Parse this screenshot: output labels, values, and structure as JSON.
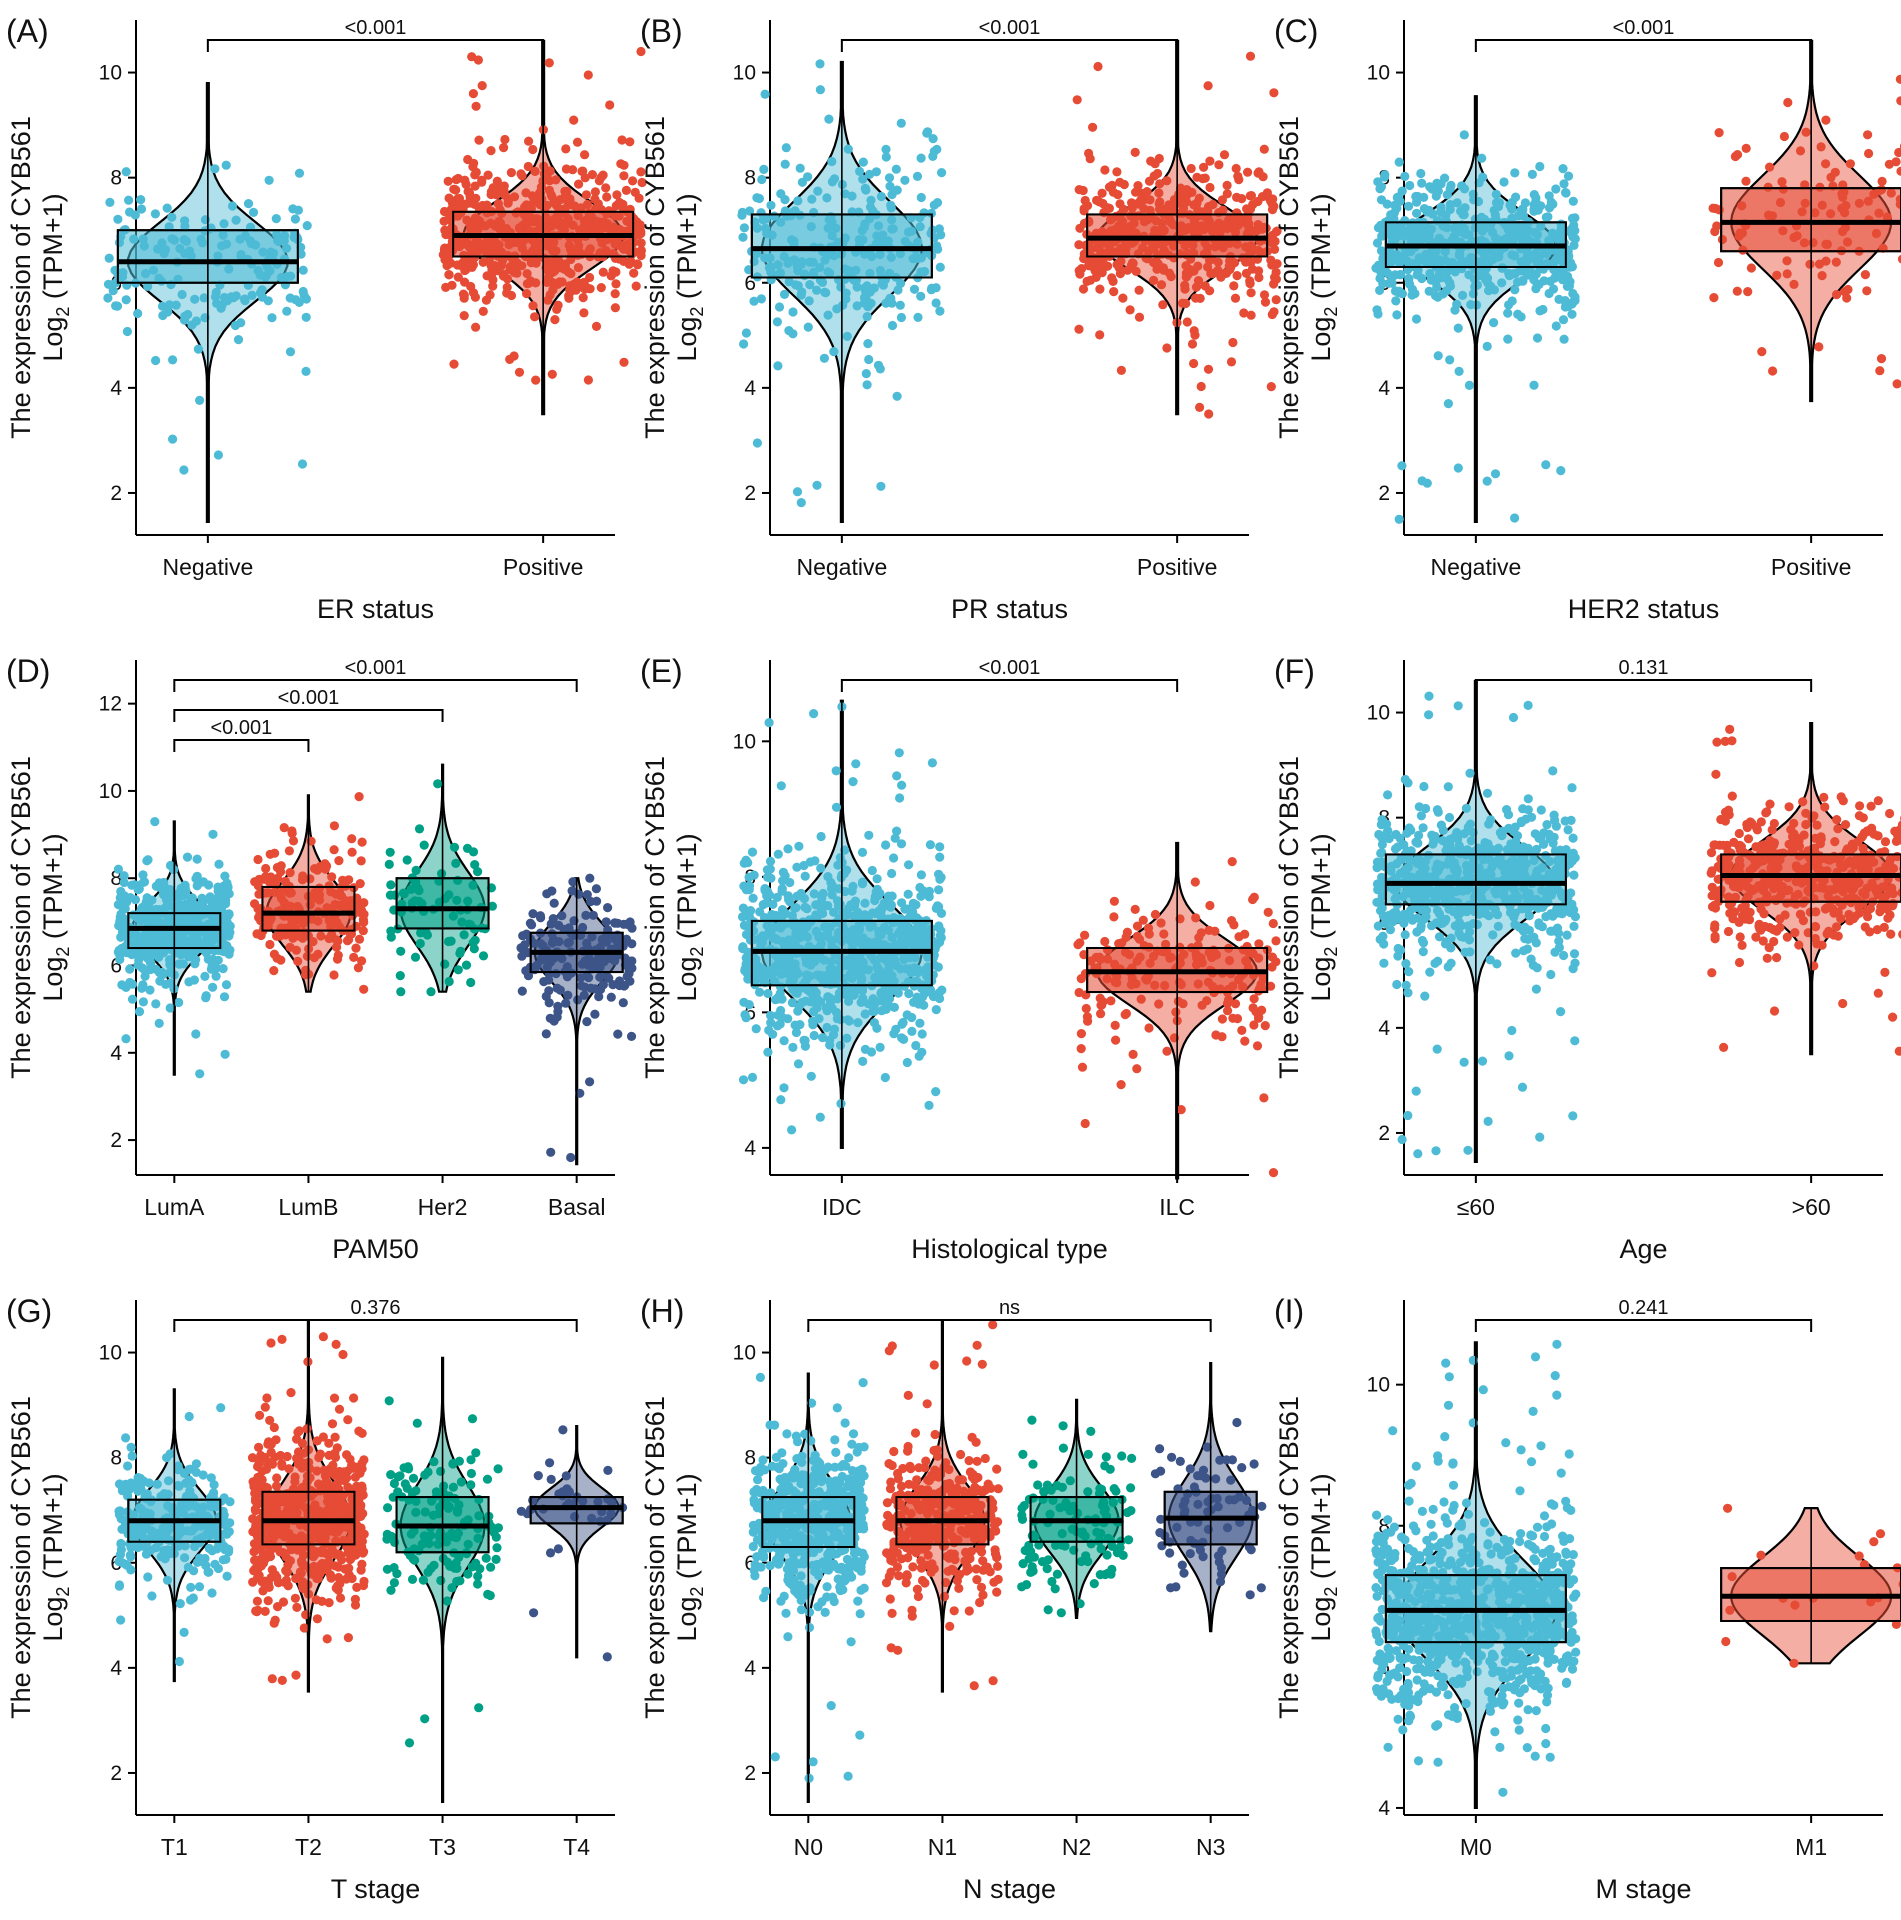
{
  "figure": {
    "ylabel_line1": "The expression of CYB561",
    "ylabel_line2_prefix": "Log",
    "ylabel_line2_sub": "2",
    "ylabel_line2_suffix": " (TPM+1)"
  },
  "colors": {
    "c1": "#4DBBD5",
    "c2": "#E64B35",
    "c3": "#00A087",
    "c4": "#3C5488"
  },
  "chart_data": [
    {
      "id": "A",
      "panel_label": "(A)",
      "type": "violin-box-jitter",
      "xlabel": "ER status",
      "ylim": [
        1.2,
        11
      ],
      "yticks": [
        2,
        4,
        6,
        8,
        10
      ],
      "groups": [
        {
          "name": "Negative",
          "color": "#4DBBD5",
          "q1": 6.0,
          "median": 6.4,
          "q3": 7.0,
          "min": 1.45,
          "max": 9.8,
          "n": 180,
          "seed": 11
        },
        {
          "name": "Positive",
          "color": "#E64B35",
          "q1": 6.5,
          "median": 6.9,
          "q3": 7.35,
          "min": 3.5,
          "max": 10.6,
          "n": 600,
          "seed": 12
        }
      ],
      "comparisons": [
        {
          "from": 0,
          "to": 1,
          "label": "<0.001"
        }
      ]
    },
    {
      "id": "B",
      "panel_label": "(B)",
      "type": "violin-box-jitter",
      "xlabel": "PR status",
      "ylim": [
        1.2,
        11
      ],
      "yticks": [
        2,
        4,
        6,
        8,
        10
      ],
      "groups": [
        {
          "name": "Negative",
          "color": "#4DBBD5",
          "q1": 6.1,
          "median": 6.65,
          "q3": 7.3,
          "min": 1.45,
          "max": 10.2,
          "n": 300,
          "seed": 21
        },
        {
          "name": "Positive",
          "color": "#E64B35",
          "q1": 6.5,
          "median": 6.85,
          "q3": 7.3,
          "min": 3.5,
          "max": 10.6,
          "n": 480,
          "seed": 22
        }
      ],
      "comparisons": [
        {
          "from": 0,
          "to": 1,
          "label": "<0.001"
        }
      ]
    },
    {
      "id": "C",
      "panel_label": "(C)",
      "type": "violin-box-jitter",
      "xlabel": "HER2 status",
      "ylim": [
        1.2,
        11
      ],
      "yticks": [
        2,
        4,
        6,
        8,
        10
      ],
      "groups": [
        {
          "name": "Negative",
          "color": "#4DBBD5",
          "q1": 6.3,
          "median": 6.7,
          "q3": 7.15,
          "min": 1.45,
          "max": 9.55,
          "n": 560,
          "seed": 31
        },
        {
          "name": "Positive",
          "color": "#E64B35",
          "q1": 6.6,
          "median": 7.15,
          "q3": 7.8,
          "min": 3.75,
          "max": 10.6,
          "n": 120,
          "seed": 32
        }
      ],
      "comparisons": [
        {
          "from": 0,
          "to": 1,
          "label": "<0.001"
        }
      ]
    },
    {
      "id": "D",
      "panel_label": "(D)",
      "type": "violin-box-jitter",
      "xlabel": "PAM50",
      "ylim": [
        1.2,
        13
      ],
      "yticks": [
        2,
        4,
        6,
        8,
        10,
        12
      ],
      "groups": [
        {
          "name": "LumA",
          "color": "#4DBBD5",
          "q1": 6.4,
          "median": 6.85,
          "q3": 7.2,
          "min": 3.5,
          "max": 9.3,
          "n": 500,
          "seed": 41
        },
        {
          "name": "LumB",
          "color": "#E64B35",
          "q1": 6.8,
          "median": 7.2,
          "q3": 7.8,
          "min": 5.4,
          "max": 9.9,
          "n": 200,
          "seed": 42
        },
        {
          "name": "Her2",
          "color": "#00A087",
          "q1": 6.85,
          "median": 7.3,
          "q3": 8.0,
          "min": 5.4,
          "max": 10.6,
          "n": 80,
          "seed": 43
        },
        {
          "name": "Basal",
          "color": "#3C5488",
          "q1": 5.85,
          "median": 6.3,
          "q3": 6.75,
          "min": 1.45,
          "max": 8.0,
          "n": 180,
          "seed": 44
        }
      ],
      "comparisons": [
        {
          "from": 0,
          "to": 1,
          "label": "<0.001"
        },
        {
          "from": 0,
          "to": 2,
          "label": "<0.001"
        },
        {
          "from": 0,
          "to": 3,
          "label": "<0.001"
        }
      ]
    },
    {
      "id": "E",
      "panel_label": "(E)",
      "type": "violin-box-jitter",
      "xlabel": "Histological type",
      "ylim": [
        3.6,
        11.2
      ],
      "yticks": [
        4,
        6,
        8,
        10
      ],
      "groups": [
        {
          "name": "IDC",
          "color": "#4DBBD5",
          "q1": 6.4,
          "median": 6.9,
          "q3": 7.35,
          "min": 4.0,
          "max": 10.6,
          "n": 780,
          "seed": 51
        },
        {
          "name": "ILC",
          "color": "#E64B35",
          "q1": 6.3,
          "median": 6.6,
          "q3": 6.95,
          "min": 3.55,
          "max": 8.5,
          "n": 200,
          "seed": 52
        }
      ],
      "comparisons": [
        {
          "from": 0,
          "to": 1,
          "label": "<0.001"
        }
      ]
    },
    {
      "id": "F",
      "panel_label": "(F)",
      "type": "violin-box-jitter",
      "xlabel": "Age",
      "ylim": [
        1.2,
        11
      ],
      "yticks": [
        2,
        4,
        6,
        8,
        10
      ],
      "groups": [
        {
          "name": "≤60",
          "color": "#4DBBD5",
          "q1": 6.35,
          "median": 6.75,
          "q3": 7.3,
          "min": 1.45,
          "max": 10.6,
          "n": 620,
          "seed": 61
        },
        {
          "name": ">60",
          "color": "#E64B35",
          "q1": 6.4,
          "median": 6.9,
          "q3": 7.3,
          "min": 3.5,
          "max": 9.8,
          "n": 480,
          "seed": 62
        }
      ],
      "comparisons": [
        {
          "from": 0,
          "to": 1,
          "label": "0.131"
        }
      ]
    },
    {
      "id": "G",
      "panel_label": "(G)",
      "type": "violin-box-jitter",
      "xlabel": "T stage",
      "ylim": [
        1.2,
        11
      ],
      "yticks": [
        2,
        4,
        6,
        8,
        10
      ],
      "groups": [
        {
          "name": "T1",
          "color": "#4DBBD5",
          "q1": 6.4,
          "median": 6.8,
          "q3": 7.2,
          "min": 3.75,
          "max": 9.3,
          "n": 260,
          "seed": 71
        },
        {
          "name": "T2",
          "color": "#E64B35",
          "q1": 6.35,
          "median": 6.8,
          "q3": 7.35,
          "min": 3.55,
          "max": 10.6,
          "n": 600,
          "seed": 72
        },
        {
          "name": "T3",
          "color": "#00A087",
          "q1": 6.2,
          "median": 6.7,
          "q3": 7.25,
          "min": 1.45,
          "max": 9.9,
          "n": 140,
          "seed": 73
        },
        {
          "name": "T4",
          "color": "#3C5488",
          "q1": 6.75,
          "median": 7.05,
          "q3": 7.25,
          "min": 4.2,
          "max": 8.6,
          "n": 35,
          "seed": 74
        }
      ],
      "comparisons": [
        {
          "from": 0,
          "to": 3,
          "label": "0.376"
        }
      ]
    },
    {
      "id": "H",
      "panel_label": "(H)",
      "type": "violin-box-jitter",
      "xlabel": "N stage",
      "ylim": [
        1.2,
        11
      ],
      "yticks": [
        2,
        4,
        6,
        8,
        10
      ],
      "groups": [
        {
          "name": "N0",
          "color": "#4DBBD5",
          "q1": 6.3,
          "median": 6.8,
          "q3": 7.25,
          "min": 1.45,
          "max": 9.6,
          "n": 500,
          "seed": 81
        },
        {
          "name": "N1",
          "color": "#E64B35",
          "q1": 6.35,
          "median": 6.8,
          "q3": 7.25,
          "min": 3.55,
          "max": 10.6,
          "n": 360,
          "seed": 82
        },
        {
          "name": "N2",
          "color": "#00A087",
          "q1": 6.4,
          "median": 6.8,
          "q3": 7.25,
          "min": 4.95,
          "max": 9.1,
          "n": 120,
          "seed": 83
        },
        {
          "name": "N3",
          "color": "#3C5488",
          "q1": 6.35,
          "median": 6.85,
          "q3": 7.35,
          "min": 4.7,
          "max": 9.8,
          "n": 75,
          "seed": 84
        }
      ],
      "comparisons": [
        {
          "from": 0,
          "to": 3,
          "label": "ns"
        }
      ]
    },
    {
      "id": "I",
      "panel_label": "(I)",
      "type": "violin-box-jitter",
      "xlabel": "M stage",
      "ylim": [
        3.9,
        11.2
      ],
      "yticks": [
        4,
        6,
        8,
        10
      ],
      "groups": [
        {
          "name": "M0",
          "color": "#4DBBD5",
          "q1": 6.35,
          "median": 6.8,
          "q3": 7.3,
          "min": 4.0,
          "max": 10.6,
          "n": 900,
          "seed": 91
        },
        {
          "name": "M1",
          "color": "#E64B35",
          "q1": 6.65,
          "median": 7.0,
          "q3": 7.4,
          "min": 6.05,
          "max": 8.25,
          "n": 20,
          "seed": 92
        }
      ],
      "comparisons": [
        {
          "from": 0,
          "to": 1,
          "label": "0.241"
        }
      ]
    }
  ]
}
